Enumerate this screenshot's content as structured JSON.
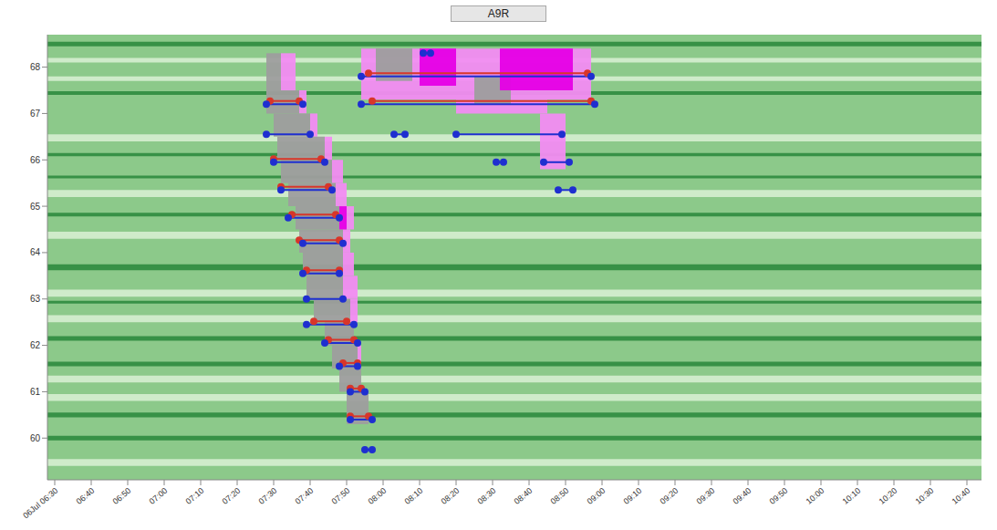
{
  "chart_data": {
    "type": "heatmap",
    "title": "A9R",
    "xlim": [
      388,
      644
    ],
    "xticks": [
      {
        "value": 390,
        "label": "06Jul 06:30"
      },
      {
        "value": 400,
        "label": "06:40"
      },
      {
        "value": 410,
        "label": "06:50"
      },
      {
        "value": 420,
        "label": "07:00"
      },
      {
        "value": 430,
        "label": "07:10"
      },
      {
        "value": 440,
        "label": "07:20"
      },
      {
        "value": 450,
        "label": "07:30"
      },
      {
        "value": 460,
        "label": "07:40"
      },
      {
        "value": 470,
        "label": "07:50"
      },
      {
        "value": 480,
        "label": "08:00"
      },
      {
        "value": 490,
        "label": "08:10"
      },
      {
        "value": 500,
        "label": "08:20"
      },
      {
        "value": 510,
        "label": "08:30"
      },
      {
        "value": 520,
        "label": "08:40"
      },
      {
        "value": 530,
        "label": "08:50"
      },
      {
        "value": 540,
        "label": "09:00"
      },
      {
        "value": 550,
        "label": "09:10"
      },
      {
        "value": 560,
        "label": "09:20"
      },
      {
        "value": 570,
        "label": "09:30"
      },
      {
        "value": 580,
        "label": "09:40"
      },
      {
        "value": 590,
        "label": "09:50"
      },
      {
        "value": 600,
        "label": "10:00"
      },
      {
        "value": 610,
        "label": "10:10"
      },
      {
        "value": 620,
        "label": "10:20"
      },
      {
        "value": 630,
        "label": "10:30"
      },
      {
        "value": 640,
        "label": "10:40"
      }
    ],
    "ylim": [
      59.1,
      68.7
    ],
    "yticks": [
      60,
      61,
      62,
      63,
      64,
      65,
      66,
      67,
      68
    ],
    "background": "#8cc98a",
    "bands": [
      {
        "y1": 63.62,
        "y2": 63.75,
        "color": "#2e8b3e"
      },
      {
        "y1": 61.55,
        "y2": 61.65,
        "color": "#2e8b3e"
      },
      {
        "y1": 60.45,
        "y2": 60.55,
        "color": "#2e8b3e"
      },
      {
        "y1": 59.95,
        "y2": 60.05,
        "color": "#2e8b3e"
      },
      {
        "y1": 62.1,
        "y2": 62.2,
        "color": "#2e8b3e"
      },
      {
        "y1": 64.78,
        "y2": 64.86,
        "color": "#2e8b3e"
      },
      {
        "y1": 66.08,
        "y2": 66.15,
        "color": "#2e8b3e"
      },
      {
        "y1": 67.4,
        "y2": 67.48,
        "color": "#2e8b3e"
      },
      {
        "y1": 68.45,
        "y2": 68.55,
        "color": "#2e8b3e"
      },
      {
        "y1": 65.6,
        "y2": 65.66,
        "color": "#2e8b3e"
      },
      {
        "y1": 62.9,
        "y2": 62.96,
        "color": "#2e8b3e"
      },
      {
        "y1": 63.05,
        "y2": 63.2,
        "color": "#d6eed0"
      },
      {
        "y1": 62.5,
        "y2": 62.65,
        "color": "#d6eed0"
      },
      {
        "y1": 65.2,
        "y2": 65.35,
        "color": "#d6eed0"
      },
      {
        "y1": 66.4,
        "y2": 66.55,
        "color": "#d6eed0"
      },
      {
        "y1": 68.1,
        "y2": 68.2,
        "color": "#d6eed0"
      },
      {
        "y1": 60.8,
        "y2": 60.95,
        "color": "#d6eed0"
      },
      {
        "y1": 64.3,
        "y2": 64.45,
        "color": "#d6eed0"
      },
      {
        "y1": 67.7,
        "y2": 67.8,
        "color": "#d6eed0"
      },
      {
        "y1": 59.4,
        "y2": 59.55,
        "color": "#d6eed0"
      },
      {
        "y1": 61.2,
        "y2": 61.35,
        "color": "#d6eed0"
      }
    ],
    "congestion": [
      {
        "color": "#f28cf2",
        "cells": [
          [
            452,
            456,
            67.5,
            68.3
          ],
          [
            457,
            459,
            67.0,
            67.5
          ],
          [
            460,
            462,
            66.5,
            67.0
          ],
          [
            464,
            466,
            66.0,
            66.5
          ],
          [
            466,
            469,
            65.5,
            66.0
          ],
          [
            467,
            470,
            65.0,
            65.5
          ],
          [
            468,
            472,
            64.5,
            65.0
          ],
          [
            469,
            471,
            64.0,
            64.5
          ],
          [
            469,
            472,
            63.5,
            64.0
          ],
          [
            469,
            473,
            63.0,
            63.5
          ],
          [
            471,
            473,
            62.5,
            63.0
          ],
          [
            473,
            474,
            61.5,
            62.0
          ],
          [
            474,
            537,
            67.3,
            68.4
          ],
          [
            500,
            525,
            67.0,
            67.3
          ],
          [
            523,
            530,
            65.8,
            67.0
          ]
        ]
      },
      {
        "color": "#9e9e9e",
        "cells": [
          [
            448,
            452,
            67.5,
            68.3
          ],
          [
            448,
            457,
            67.0,
            67.5
          ],
          [
            450,
            460,
            66.5,
            67.0
          ],
          [
            451,
            464,
            66.0,
            66.5
          ],
          [
            452,
            466,
            65.5,
            66.0
          ],
          [
            454,
            467,
            65.0,
            65.5
          ],
          [
            456,
            468,
            64.5,
            65.0
          ],
          [
            457,
            469,
            64.0,
            64.5
          ],
          [
            458,
            469,
            63.5,
            64.0
          ],
          [
            459,
            469,
            63.0,
            63.5
          ],
          [
            461,
            471,
            62.5,
            63.0
          ],
          [
            464,
            472,
            62.0,
            62.5
          ],
          [
            466,
            473,
            61.5,
            62.0
          ],
          [
            468,
            474,
            61.0,
            61.5
          ],
          [
            470,
            476,
            60.3,
            61.0
          ],
          [
            478,
            488,
            67.7,
            68.4
          ],
          [
            505,
            515,
            67.2,
            67.8
          ]
        ]
      },
      {
        "color": "#e600e6",
        "cells": [
          [
            468,
            470,
            64.5,
            65.0
          ],
          [
            490,
            500,
            67.6,
            68.4
          ],
          [
            512,
            532,
            67.5,
            68.4
          ]
        ]
      }
    ],
    "series": [
      {
        "color": "#d8362a",
        "marker": "circle",
        "segments": [
          [
            449,
            457,
            67.27
          ],
          [
            450,
            463,
            66.02
          ],
          [
            452,
            465,
            65.42
          ],
          [
            455,
            467,
            64.82
          ],
          [
            457,
            468,
            64.27
          ],
          [
            459,
            468,
            63.62
          ],
          [
            461,
            470,
            62.52
          ],
          [
            465,
            472,
            62.12
          ],
          [
            469,
            473,
            61.62
          ],
          [
            471,
            474,
            61.07
          ],
          [
            471,
            476,
            60.47
          ],
          [
            476,
            536,
            67.87
          ],
          [
            477,
            537,
            67.27
          ]
        ]
      },
      {
        "color": "#1f2fd0",
        "marker": "circle",
        "segments": [
          [
            448,
            458,
            67.2
          ],
          [
            448,
            460,
            66.55
          ],
          [
            450,
            464,
            65.95
          ],
          [
            452,
            466,
            65.35
          ],
          [
            454,
            468,
            64.75
          ],
          [
            458,
            469,
            64.2
          ],
          [
            458,
            468,
            63.55
          ],
          [
            459,
            469,
            63.0
          ],
          [
            459,
            472,
            62.45
          ],
          [
            464,
            473,
            62.05
          ],
          [
            468,
            473,
            61.55
          ],
          [
            471,
            475,
            61.0
          ],
          [
            471,
            477,
            60.4
          ],
          [
            475,
            477,
            59.75
          ],
          [
            474,
            537,
            67.8
          ],
          [
            474,
            538,
            67.2
          ],
          [
            483,
            486,
            66.55
          ],
          [
            500,
            529,
            66.55
          ],
          [
            524,
            531,
            65.95
          ],
          [
            511,
            513,
            65.95
          ],
          [
            528,
            532,
            65.35
          ],
          [
            491,
            493,
            68.3
          ]
        ]
      }
    ]
  }
}
